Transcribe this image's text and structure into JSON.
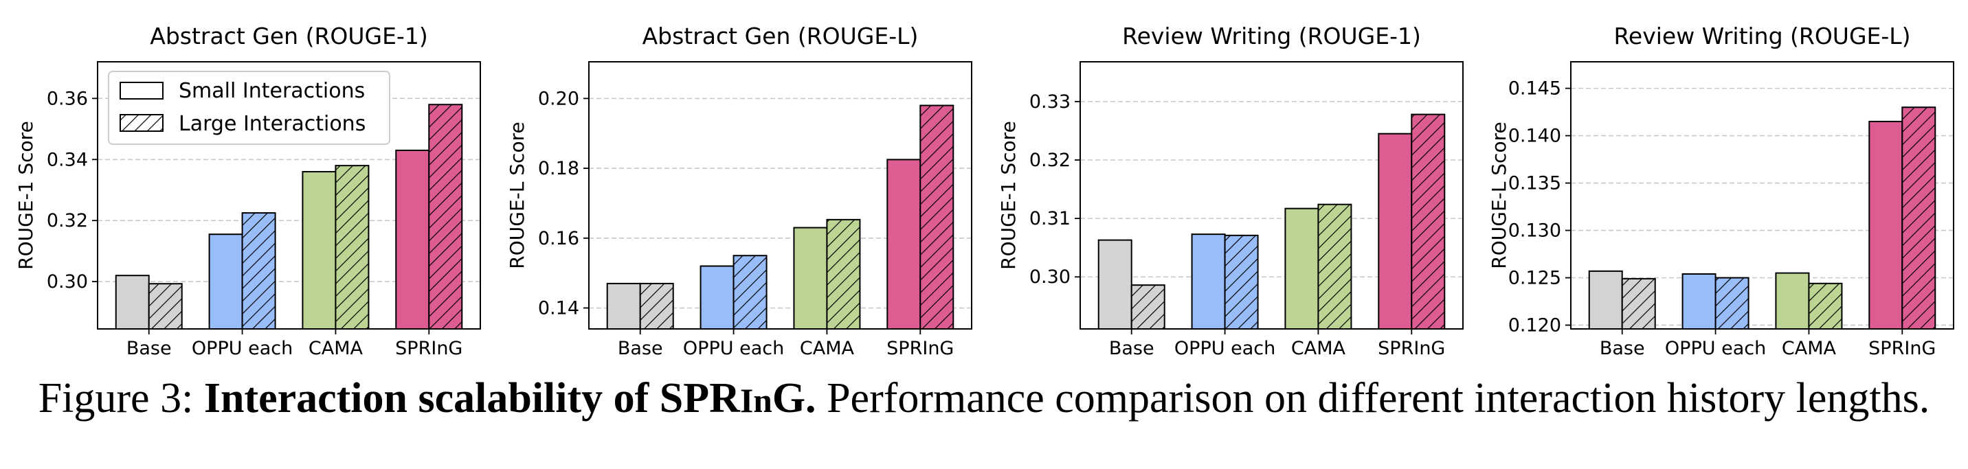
{
  "legend": {
    "small": "Small Interactions",
    "large": "Large Interactions"
  },
  "colors": {
    "Base": "#d3d3d3",
    "OPPU each": "#99bdf8",
    "CAMA": "#bcd595",
    "SPRInG": "#dd5c92"
  },
  "chart_data": [
    {
      "type": "bar",
      "title": "Abstract Gen (ROUGE-1)",
      "ylabel": "ROUGE-1 Score",
      "categories": [
        "Base",
        "OPPU each",
        "CAMA",
        "SPRInG"
      ],
      "series": [
        {
          "name": "Small Interactions",
          "values": [
            0.302,
            0.3155,
            0.336,
            0.343
          ]
        },
        {
          "name": "Large Interactions",
          "values": [
            0.2993,
            0.3225,
            0.338,
            0.358
          ]
        }
      ],
      "ylim": [
        0.2845,
        0.372
      ],
      "yticks": [
        "0.30",
        "0.32",
        "0.34",
        "0.36"
      ],
      "grid": "y-dashed",
      "legend_position": "upper-left"
    },
    {
      "type": "bar",
      "title": "Abstract Gen (ROUGE-L)",
      "ylabel": "ROUGE-L Score",
      "categories": [
        "Base",
        "OPPU each",
        "CAMA",
        "SPRInG"
      ],
      "series": [
        {
          "name": "Small Interactions",
          "values": [
            0.147,
            0.152,
            0.163,
            0.1825
          ]
        },
        {
          "name": "Large Interactions",
          "values": [
            0.147,
            0.155,
            0.1653,
            0.198
          ]
        }
      ],
      "ylim": [
        0.134,
        0.2105
      ],
      "yticks": [
        "0.14",
        "0.16",
        "0.18",
        "0.20"
      ],
      "grid": "y-dashed"
    },
    {
      "type": "bar",
      "title": "Review Writing (ROUGE-1)",
      "ylabel": "ROUGE-1 Score",
      "categories": [
        "Base",
        "OPPU each",
        "CAMA",
        "SPRInG"
      ],
      "series": [
        {
          "name": "Small Interactions",
          "values": [
            0.3063,
            0.3073,
            0.3117,
            0.3245
          ]
        },
        {
          "name": "Large Interactions",
          "values": [
            0.2986,
            0.3071,
            0.3124,
            0.3278
          ]
        }
      ],
      "ylim": [
        0.2911,
        0.3368
      ],
      "yticks": [
        "0.30",
        "0.31",
        "0.32",
        "0.33"
      ],
      "grid": "y-dashed"
    },
    {
      "type": "bar",
      "title": "Review Writing (ROUGE-L)",
      "ylabel": "ROUGE-L Score",
      "categories": [
        "Base",
        "OPPU each",
        "CAMA",
        "SPRInG"
      ],
      "series": [
        {
          "name": "Small Interactions",
          "values": [
            0.1257,
            0.1254,
            0.1255,
            0.1415
          ]
        },
        {
          "name": "Large Interactions",
          "values": [
            0.1249,
            0.125,
            0.1244,
            0.143
          ]
        }
      ],
      "ylim": [
        0.1196,
        0.1478
      ],
      "yticks": [
        "0.120",
        "0.125",
        "0.130",
        "0.135",
        "0.140",
        "0.145"
      ],
      "grid": "y-dashed"
    }
  ],
  "caption": {
    "prefix": "Figure 3: ",
    "bold": "Interaction scalability of SPR",
    "bold_sc": "In",
    "bold_tail": "G.",
    "rest": " Performance comparison on different interaction history lengths."
  }
}
